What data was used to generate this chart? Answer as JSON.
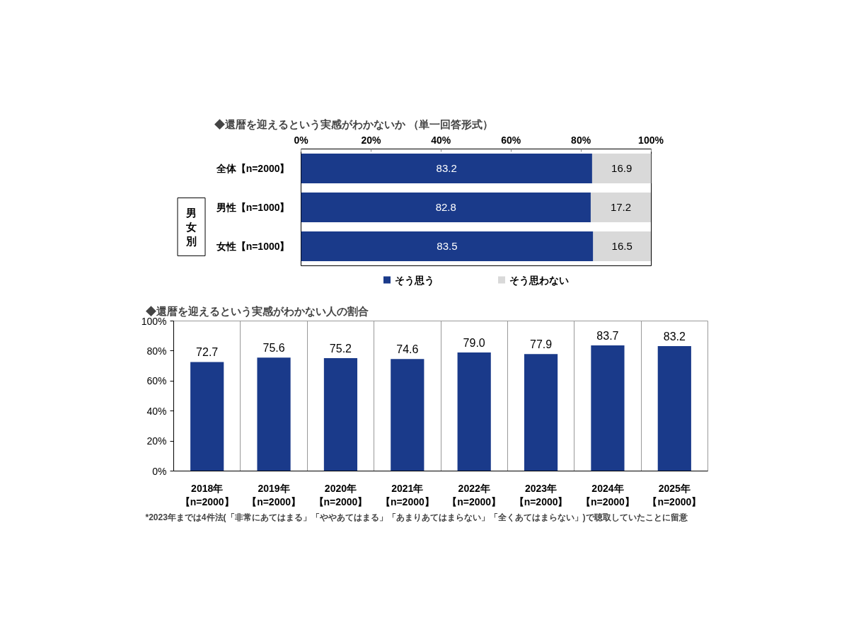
{
  "chart_data": [
    {
      "type": "bar",
      "title": "◆還暦を迎えるという実感がわかないか （単一回答形式）",
      "orientation": "horizontal",
      "stacked": true,
      "categories": [
        "全体【n=2000】",
        "男性【n=1000】",
        "女性【n=1000】"
      ],
      "series": [
        {
          "name": "そう思う",
          "color": "#1a3a8a",
          "values": [
            83.2,
            82.8,
            83.5
          ]
        },
        {
          "name": "そう思わない",
          "color": "#d9d9d9",
          "values": [
            16.9,
            17.2,
            16.5
          ]
        }
      ],
      "xlim": [
        0,
        100.1
      ],
      "xticks": [
        {
          "value": 0,
          "label": "0%"
        },
        {
          "value": 20,
          "label": "20%"
        },
        {
          "value": 40,
          "label": "40%"
        },
        {
          "value": 60,
          "label": "60%"
        },
        {
          "value": 80,
          "label": "80%"
        },
        {
          "value": 100,
          "label": "100%"
        }
      ],
      "data_labels": true,
      "legend": "bottom",
      "annotations": [
        "男女別"
      ]
    },
    {
      "type": "bar",
      "title": "◆還暦を迎えるという実感がわかない人の割合",
      "categories": [
        "2018年【n=2000】",
        "2019年【n=2000】",
        "2020年【n=2000】",
        "2021年【n=2000】",
        "2022年【n=2000】",
        "2023年【n=2000】",
        "2024年【n=2000】",
        "2025年【n=2000】"
      ],
      "values": [
        72.7,
        75.6,
        75.2,
        74.6,
        79.0,
        77.9,
        83.7,
        83.2
      ],
      "color": "#1a3a8a",
      "value_labels": [
        "72.7",
        "75.6",
        "75.2",
        "74.6",
        "79.0",
        "77.9",
        "83.7",
        "83.2"
      ],
      "ylim": [
        0,
        100
      ],
      "yticks": [
        {
          "value": 0,
          "label": "0%"
        },
        {
          "value": 20,
          "label": "20%"
        },
        {
          "value": 40,
          "label": "40%"
        },
        {
          "value": 60,
          "label": "60%"
        },
        {
          "value": 80,
          "label": "80%"
        },
        {
          "value": 100,
          "label": "100%"
        }
      ],
      "grid": "x",
      "annotations": [
        "*2023年までは4件法(「非常にあてはまる」「ややあてはまる」「あまりあてはまらない」「全くあてはまらない」)で聴取していたことに留意"
      ]
    }
  ]
}
